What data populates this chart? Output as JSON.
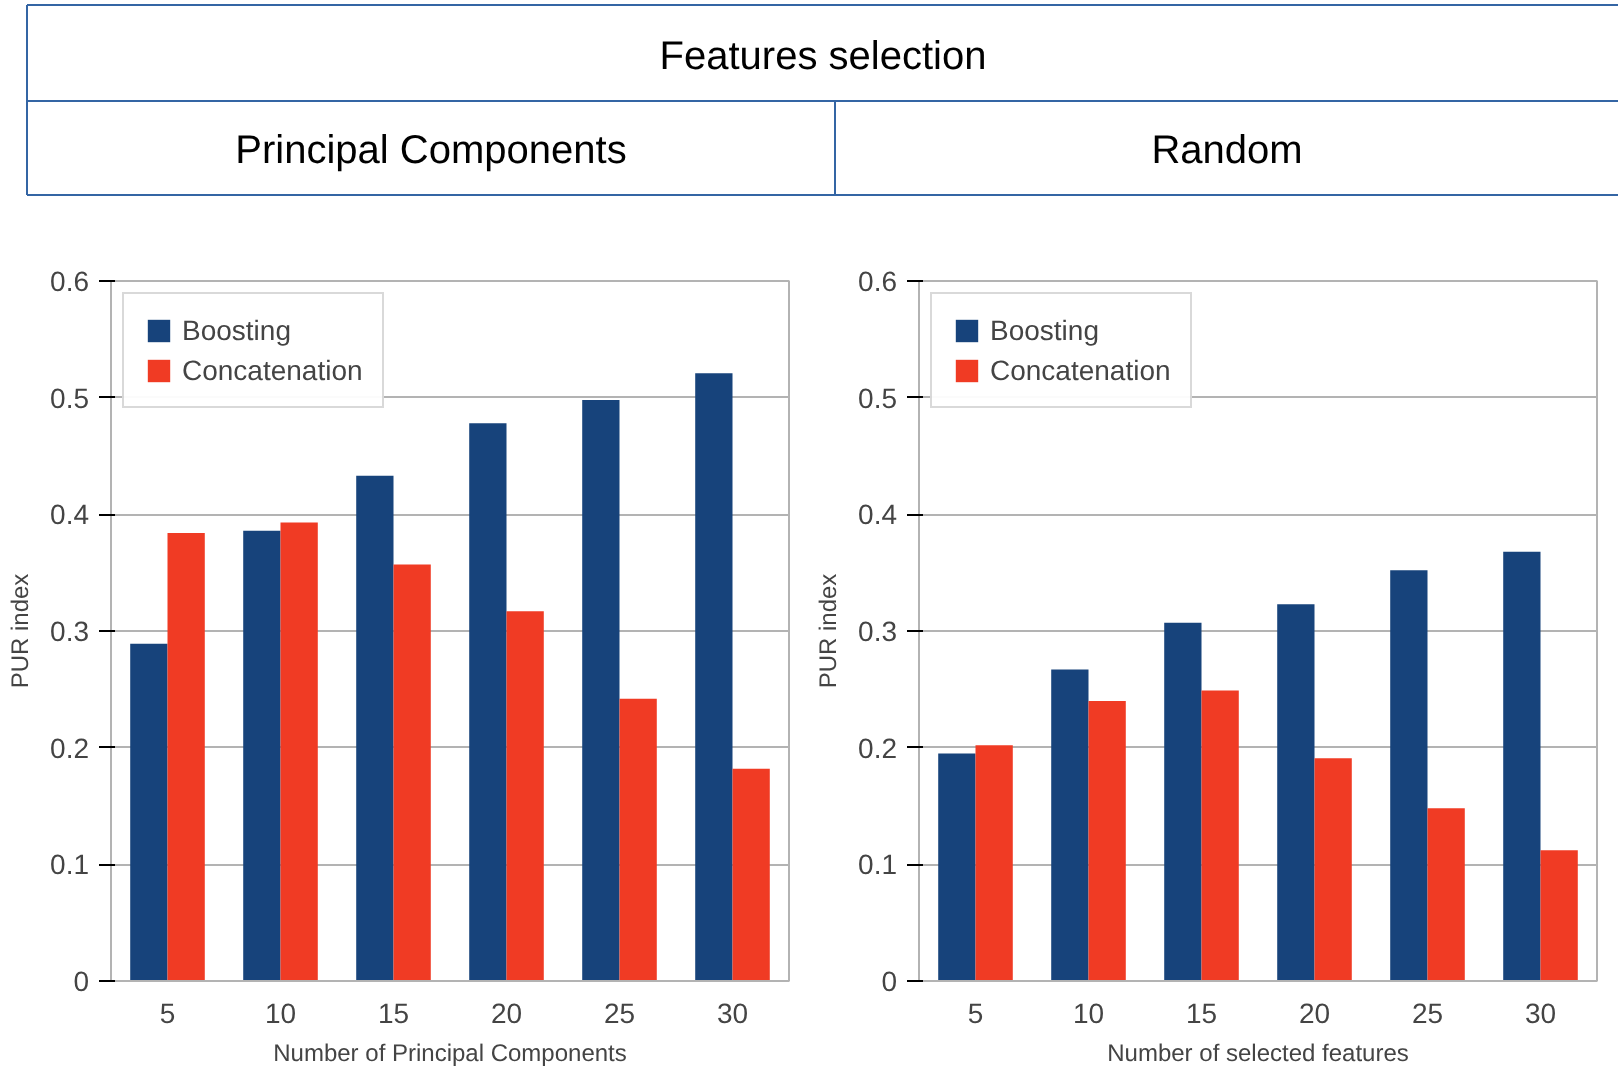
{
  "chart_data": [
    {
      "type": "bar",
      "title": "Principal Components",
      "annotations": [
        "Features selection"
      ],
      "xlabel": "Number of Principal Components",
      "ylabel": "PUR index",
      "categories": [
        "5",
        "10",
        "15",
        "20",
        "25",
        "30"
      ],
      "series": [
        {
          "name": "Boosting",
          "color": "#17437b",
          "values": [
            0.289,
            0.386,
            0.433,
            0.478,
            0.498,
            0.521
          ]
        },
        {
          "name": "Concatenation",
          "color": "#f03b24",
          "values": [
            0.384,
            0.393,
            0.357,
            0.317,
            0.242,
            0.182
          ]
        }
      ],
      "ylim": [
        0,
        0.6
      ],
      "yticks": [
        0,
        0.1,
        0.2,
        0.3,
        0.4,
        0.5,
        0.6
      ],
      "grid": "y",
      "legend": "top left"
    },
    {
      "type": "bar",
      "title": "Random",
      "xlabel": "Number of selected features",
      "ylabel": "PUR index",
      "categories": [
        "5",
        "10",
        "15",
        "20",
        "25",
        "30"
      ],
      "series": [
        {
          "name": "Boosting",
          "color": "#17437b",
          "values": [
            0.195,
            0.267,
            0.307,
            0.323,
            0.352,
            0.368
          ]
        },
        {
          "name": "Concatenation",
          "color": "#f03b24",
          "values": [
            0.202,
            0.24,
            0.249,
            0.191,
            0.148,
            0.112
          ]
        }
      ],
      "ylim": [
        0,
        0.6
      ],
      "yticks": [
        0,
        0.1,
        0.2,
        0.3,
        0.4,
        0.5,
        0.6
      ],
      "grid": "y",
      "legend": "top left"
    }
  ]
}
